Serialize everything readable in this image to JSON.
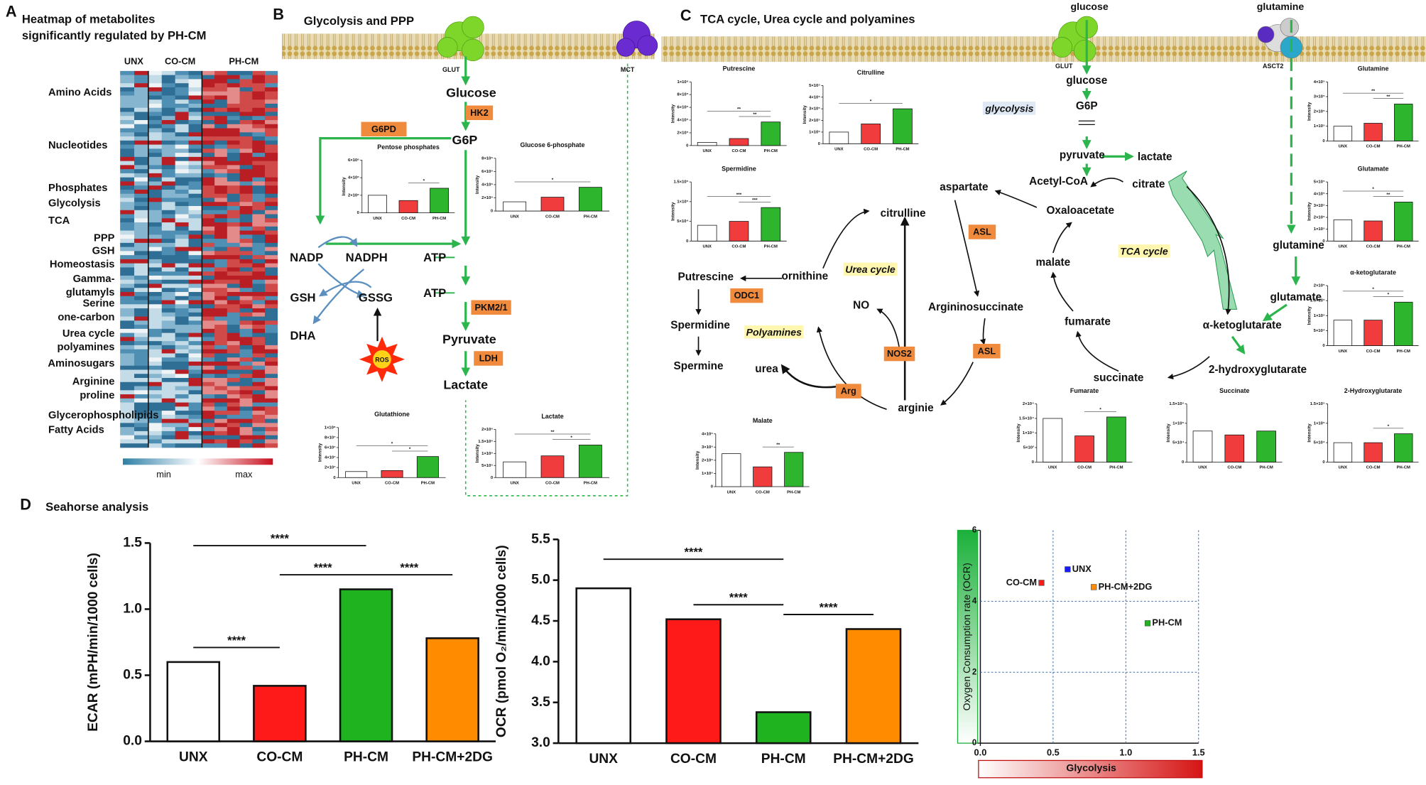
{
  "panel_a": {
    "letter": "A",
    "title_lines": [
      "Heatmap of metabolites",
      "significantly regulated by PH-CM"
    ],
    "columns": [
      "UNX",
      "CO-CM",
      "PH-CM"
    ],
    "row_labels": [
      [
        "Amino Acids"
      ],
      [
        "Nucleotides"
      ],
      [
        "Phosphates"
      ],
      [
        "Glycolysis"
      ],
      [
        "TCA"
      ],
      [
        "PPP"
      ],
      [
        "GSH",
        "Homeostasis"
      ],
      [
        "Gamma-",
        "glutamyls"
      ],
      [
        "Serine",
        "one-carbon"
      ],
      [
        "Urea cycle",
        "polyamines"
      ],
      [
        "Aminosugars"
      ],
      [
        "Arginine",
        "proline"
      ],
      [
        "Glycerophospholipids",
        "Fatty Acids"
      ]
    ],
    "legend": [
      "min",
      "max"
    ]
  },
  "panel_b": {
    "letter": "B",
    "title": "Glycolysis and PPP",
    "labels": [
      "GLUT",
      "MCT",
      "Glucose",
      "G6P",
      "NADP",
      "NADPH",
      "ATP",
      "ATP",
      "GSH",
      "GSSG",
      "DHA",
      "Pyruvate",
      "Lactate"
    ],
    "enzymes": [
      "HK2",
      "G6PD",
      "PKM2/1",
      "LDH"
    ],
    "ros": "ROS"
  },
  "panel_c": {
    "letter": "C",
    "title": "TCA cycle, Urea cycle and polyamines",
    "labels": [
      "glucose",
      "glutamine",
      "GLUT",
      "ASCT2",
      "glucose",
      "G6P",
      "pyruvate",
      "lactate",
      "Acetyl-CoA",
      "citrate",
      "aspartate",
      "Oxaloacetate",
      "citrulline",
      "malate",
      "ornithine",
      "Putrescine",
      "glutamine",
      "glutamate",
      "NO",
      "Argininosuccinate",
      "fumarate",
      "α-ketoglutarate",
      "Spermidine",
      "2-hydroxyglutarate",
      "Spermine",
      "urea",
      "arginie",
      "succinate"
    ],
    "pathways": [
      "glycolysis",
      "TCA cycle",
      "Urea cycle",
      "Polyamines"
    ],
    "enzymes": [
      "ODC1",
      "ASL",
      "ASL",
      "NOS2",
      "Arg"
    ]
  },
  "panel_d": {
    "letter": "D",
    "title": "Seahorse analysis"
  },
  "chart_data": [
    {
      "type": "bar",
      "ylabel": "ECAR (mPH/min/1000 cells)",
      "categories": [
        "UNX",
        "CO-CM",
        "PH-CM",
        "PH-CM+2DG"
      ],
      "values": [
        0.6,
        0.42,
        1.15,
        0.78
      ],
      "colors": [
        "#ffffff",
        "#ff1a1a",
        "#1fb41f",
        "#ff8c00"
      ],
      "ylim": [
        0,
        1.5
      ],
      "yticks": [
        {
          "value": 0,
          "label": "0.0"
        },
        0.5,
        {
          "value": 1,
          "label": "1.0"
        },
        {
          "value": 1.5,
          "label": "1.5"
        }
      ],
      "significance": [
        {
          "pair": [
            0,
            1
          ],
          "label": "****"
        },
        {
          "pair": [
            1,
            2
          ],
          "label": "****"
        },
        {
          "pair": [
            2,
            3
          ],
          "label": "****"
        },
        {
          "pair": [
            0,
            2
          ],
          "label": "****"
        }
      ]
    },
    {
      "type": "bar",
      "ylabel": "OCR (pmol O₂/min/1000 cells)",
      "categories": [
        "UNX",
        "CO-CM",
        "PH-CM",
        "PH-CM+2DG"
      ],
      "values": [
        4.9,
        4.52,
        3.38,
        4.4
      ],
      "colors": [
        "#ffffff",
        "#ff1a1a",
        "#1fb41f",
        "#ff8c00"
      ],
      "ylim": [
        3,
        5.5
      ],
      "yticks": [
        {
          "value": 3,
          "label": "3.0"
        },
        3.5,
        {
          "value": 4,
          "label": "4.0"
        },
        4.5,
        {
          "value": 5,
          "label": "5.0"
        },
        5.5
      ],
      "significance": [
        {
          "pair": [
            1,
            2
          ],
          "label": "****"
        },
        {
          "pair": [
            2,
            3
          ],
          "label": "****"
        },
        {
          "pair": [
            0,
            2
          ],
          "label": "****"
        }
      ]
    },
    {
      "type": "scatter",
      "ylabel": "Oxygen Consumption rate (OCR)",
      "xlabel": "Glycolysis",
      "xlim": [
        0,
        1.5
      ],
      "ylim": [
        0,
        6
      ],
      "xticks": [
        {
          "value": 0,
          "label": "0.0"
        },
        0.5,
        {
          "value": 1,
          "label": "1.0"
        },
        1.5
      ],
      "yticks": [
        0,
        2,
        4,
        6
      ],
      "grid": true,
      "points": [
        {
          "name": "UNX",
          "color": "#1a1aff",
          "x": 0.6,
          "y": 4.9
        },
        {
          "name": "CO-CM",
          "color": "#ff1a1a",
          "x": 0.42,
          "y": 4.52
        },
        {
          "name": "PH-CM+2DG",
          "color": "#ff8c00",
          "x": 0.78,
          "y": 4.4
        },
        {
          "name": "PH-CM",
          "color": "#1fb41f",
          "x": 1.15,
          "y": 3.38
        }
      ]
    },
    {
      "type": "bar",
      "title": "Pentose phosphates",
      "ylabel": "Intensity",
      "categories": [
        "UNX",
        "CO-CM",
        "PH-CM"
      ],
      "values": [
        2000000,
        1400000,
        2800000
      ],
      "colors": [
        "#ffffff",
        "#f03c3c",
        "#2db52d"
      ],
      "ylim": [
        0,
        6000000
      ],
      "yticks": [
        0,
        {
          "value": 2000000,
          "label": "2×10⁶"
        },
        {
          "value": 4000000,
          "label": "4×10⁶"
        },
        {
          "value": 6000000,
          "label": "6×10⁶"
        }
      ],
      "significance": [
        {
          "pair": [
            1,
            2
          ],
          "label": "*"
        }
      ]
    },
    {
      "type": "bar",
      "title": "Glucose 6-phosphate",
      "ylabel": "Intensity",
      "categories": [
        "UNX",
        "CO-CM",
        "PH-CM"
      ],
      "values": [
        1400000,
        2100000,
        3600000
      ],
      "colors": [
        "#ffffff",
        "#f03c3c",
        "#2db52d"
      ],
      "ylim": [
        0,
        8000000
      ],
      "yticks": [
        0,
        {
          "value": 2000000,
          "label": "2×10⁶"
        },
        {
          "value": 4000000,
          "label": "4×10⁶"
        },
        {
          "value": 6000000,
          "label": "6×10⁶"
        },
        {
          "value": 8000000,
          "label": "8×10⁶"
        }
      ],
      "significance": [
        {
          "pair": [
            0,
            2
          ],
          "label": "*"
        }
      ]
    },
    {
      "type": "bar",
      "title": "Glutathione",
      "ylabel": "Intensity",
      "categories": [
        "UNX",
        "CO-CM",
        "PH-CM"
      ],
      "values": [
        12000000,
        14000000,
        42000000
      ],
      "colors": [
        "#ffffff",
        "#f03c3c",
        "#2db52d"
      ],
      "ylim": [
        0,
        100000000
      ],
      "yticks": [
        0,
        {
          "value": 20000000,
          "label": "2×10⁷"
        },
        {
          "value": 40000000,
          "label": "4×10⁷"
        },
        {
          "value": 60000000,
          "label": "6×10⁷"
        },
        {
          "value": 80000000,
          "label": "8×10⁷"
        },
        {
          "value": 100000000,
          "label": "1×10⁸"
        }
      ],
      "significance": [
        {
          "pair": [
            1,
            2
          ],
          "label": "*"
        },
        {
          "pair": [
            0,
            2
          ],
          "label": "*"
        }
      ]
    },
    {
      "type": "bar",
      "title": "Lactate",
      "ylabel": "Intensity",
      "categories": [
        "UNX",
        "CO-CM",
        "PH-CM"
      ],
      "values": [
        650000,
        900000,
        1350000
      ],
      "colors": [
        "#ffffff",
        "#f03c3c",
        "#2db52d"
      ],
      "ylim": [
        0,
        2000000
      ],
      "yticks": [
        0,
        {
          "value": 500000,
          "label": "5×10⁵"
        },
        {
          "value": 1000000,
          "label": "1×10⁶"
        },
        {
          "value": 1500000,
          "label": "1.5×10⁶"
        },
        {
          "value": 2000000,
          "label": "2×10⁶"
        }
      ],
      "significance": [
        {
          "pair": [
            1,
            2
          ],
          "label": "*"
        },
        {
          "pair": [
            0,
            2
          ],
          "label": "**"
        }
      ]
    },
    {
      "type": "bar",
      "title": "Putrescine",
      "ylabel": "Intensity",
      "categories": [
        "UNX",
        "CO-CM",
        "PH-CM"
      ],
      "values": [
        50000,
        110000,
        370000
      ],
      "colors": [
        "#ffffff",
        "#f03c3c",
        "#2db52d"
      ],
      "ylim": [
        0,
        1000000
      ],
      "yticks": [
        0,
        {
          "value": 200000,
          "label": "2×10⁵"
        },
        {
          "value": 400000,
          "label": "4×10⁵"
        },
        {
          "value": 600000,
          "label": "6×10⁵"
        },
        {
          "value": 800000,
          "label": "8×10⁵"
        },
        {
          "value": 1000000,
          "label": "1×10⁶"
        }
      ],
      "significance": [
        {
          "pair": [
            1,
            2
          ],
          "label": "**"
        },
        {
          "pair": [
            0,
            2
          ],
          "label": "**"
        }
      ]
    },
    {
      "type": "bar",
      "title": "Citrulline",
      "ylabel": "Intensity",
      "categories": [
        "UNX",
        "CO-CM",
        "PH-CM"
      ],
      "values": [
        100000,
        170000,
        300000
      ],
      "colors": [
        "#ffffff",
        "#f03c3c",
        "#2db52d"
      ],
      "ylim": [
        0,
        500000
      ],
      "yticks": [
        0,
        {
          "value": 100000,
          "label": "1×10⁵"
        },
        {
          "value": 200000,
          "label": "2×10⁵"
        },
        {
          "value": 300000,
          "label": "3×10⁵"
        },
        {
          "value": 400000,
          "label": "4×10⁵"
        },
        {
          "value": 500000,
          "label": "5×10⁵"
        }
      ],
      "significance": [
        {
          "pair": [
            0,
            2
          ],
          "label": "*"
        }
      ]
    },
    {
      "type": "bar",
      "title": "Spermidine",
      "ylabel": "Intensity",
      "categories": [
        "UNX",
        "CO-CM",
        "PH-CM"
      ],
      "values": [
        40000,
        50000,
        85000
      ],
      "colors": [
        "#ffffff",
        "#f03c3c",
        "#2db52d"
      ],
      "ylim": [
        0,
        150000
      ],
      "yticks": [
        0,
        {
          "value": 50000,
          "label": "5×10⁴"
        },
        {
          "value": 100000,
          "label": "1×10⁵"
        },
        {
          "value": 150000,
          "label": "1.5×10⁵"
        }
      ],
      "significance": [
        {
          "pair": [
            1,
            2
          ],
          "label": "***"
        },
        {
          "pair": [
            0,
            2
          ],
          "label": "***"
        }
      ]
    },
    {
      "type": "bar",
      "title": "Malate",
      "ylabel": "Intensity",
      "categories": [
        "UNX",
        "CO-CM",
        "PH-CM"
      ],
      "values": [
        2500000,
        1500000,
        2600000
      ],
      "colors": [
        "#ffffff",
        "#f03c3c",
        "#2db52d"
      ],
      "ylim": [
        0,
        4000000
      ],
      "yticks": [
        0,
        {
          "value": 1000000,
          "label": "1×10⁶"
        },
        {
          "value": 2000000,
          "label": "2×10⁶"
        },
        {
          "value": 3000000,
          "label": "3×10⁶"
        },
        {
          "value": 4000000,
          "label": "4×10⁶"
        }
      ],
      "significance": [
        {
          "pair": [
            1,
            2
          ],
          "label": "**"
        }
      ]
    },
    {
      "type": "bar",
      "title": "Fumarate",
      "ylabel": "Intensity",
      "categories": [
        "UNX",
        "CO-CM",
        "PH-CM"
      ],
      "values": [
        15000,
        9000,
        15500
      ],
      "colors": [
        "#ffffff",
        "#f03c3c",
        "#2db52d"
      ],
      "ylim": [
        0,
        20000
      ],
      "yticks": [
        0,
        {
          "value": 5000,
          "label": "5×10³"
        },
        {
          "value": 10000,
          "label": "1×10⁴"
        },
        {
          "value": 15000,
          "label": "1.5×10⁴"
        },
        {
          "value": 20000,
          "label": "2×10⁴"
        }
      ],
      "significance": [
        {
          "pair": [
            1,
            2
          ],
          "label": "*"
        }
      ]
    },
    {
      "type": "bar",
      "title": "Succinate",
      "ylabel": "Intensity",
      "categories": [
        "UNX",
        "CO-CM",
        "PH-CM"
      ],
      "values": [
        80000,
        70000,
        80000
      ],
      "colors": [
        "#ffffff",
        "#f03c3c",
        "#2db52d"
      ],
      "ylim": [
        0,
        150000
      ],
      "yticks": [
        0,
        {
          "value": 50000,
          "label": "5×10⁴"
        },
        {
          "value": 100000,
          "label": "1×10⁵"
        },
        {
          "value": 150000,
          "label": "1.5×10⁵"
        }
      ],
      "significance": []
    },
    {
      "type": "bar",
      "title": "Glutamine",
      "ylabel": "Intensity",
      "categories": [
        "UNX",
        "CO-CM",
        "PH-CM"
      ],
      "values": [
        100000,
        120000,
        250000
      ],
      "colors": [
        "#ffffff",
        "#f03c3c",
        "#2db52d"
      ],
      "ylim": [
        0,
        400000
      ],
      "yticks": [
        0,
        {
          "value": 100000,
          "label": "1×10⁵"
        },
        {
          "value": 200000,
          "label": "2×10⁵"
        },
        {
          "value": 300000,
          "label": "3×10⁵"
        },
        {
          "value": 400000,
          "label": "4×10⁵"
        }
      ],
      "significance": [
        {
          "pair": [
            1,
            2
          ],
          "label": "**"
        },
        {
          "pair": [
            0,
            2
          ],
          "label": "**"
        }
      ]
    },
    {
      "type": "bar",
      "title": "Glutamate",
      "ylabel": "Intensity",
      "categories": [
        "UNX",
        "CO-CM",
        "PH-CM"
      ],
      "values": [
        180000,
        170000,
        330000
      ],
      "colors": [
        "#ffffff",
        "#f03c3c",
        "#2db52d"
      ],
      "ylim": [
        0,
        500000
      ],
      "yticks": [
        0,
        {
          "value": 100000,
          "label": "1×10⁵"
        },
        {
          "value": 200000,
          "label": "2×10⁵"
        },
        {
          "value": 300000,
          "label": "3×10⁵"
        },
        {
          "value": 400000,
          "label": "4×10⁵"
        },
        {
          "value": 500000,
          "label": "5×10⁵"
        }
      ],
      "significance": [
        {
          "pair": [
            1,
            2
          ],
          "label": "**"
        },
        {
          "pair": [
            0,
            2
          ],
          "label": "*"
        }
      ]
    },
    {
      "type": "bar",
      "title": "α-ketoglutarate",
      "ylabel": "Intensity",
      "categories": [
        "UNX",
        "CO-CM",
        "PH-CM"
      ],
      "values": [
        85000,
        85000,
        145000
      ],
      "colors": [
        "#ffffff",
        "#f03c3c",
        "#2db52d"
      ],
      "ylim": [
        0,
        200000
      ],
      "yticks": [
        0,
        {
          "value": 50000,
          "label": "5×10⁴"
        },
        {
          "value": 100000,
          "label": "1×10⁵"
        },
        {
          "value": 150000,
          "label": "1.5×10⁵"
        },
        {
          "value": 200000,
          "label": "2×10⁵"
        }
      ],
      "significance": [
        {
          "pair": [
            1,
            2
          ],
          "label": "*"
        },
        {
          "pair": [
            0,
            2
          ],
          "label": "*"
        }
      ]
    },
    {
      "type": "bar",
      "title": "2-Hydroxyglutarate",
      "ylabel": "Intensity",
      "categories": [
        "UNX",
        "CO-CM",
        "PH-CM"
      ],
      "values": [
        50000,
        50000,
        73000
      ],
      "colors": [
        "#ffffff",
        "#f03c3c",
        "#2db52d"
      ],
      "ylim": [
        0,
        150000
      ],
      "yticks": [
        0,
        {
          "value": 50000,
          "label": "5×10⁴"
        },
        {
          "value": 100000,
          "label": "1×10⁵"
        },
        {
          "value": 150000,
          "label": "1.5×10⁵"
        }
      ],
      "significance": [
        {
          "pair": [
            1,
            2
          ],
          "label": "*"
        }
      ]
    }
  ]
}
